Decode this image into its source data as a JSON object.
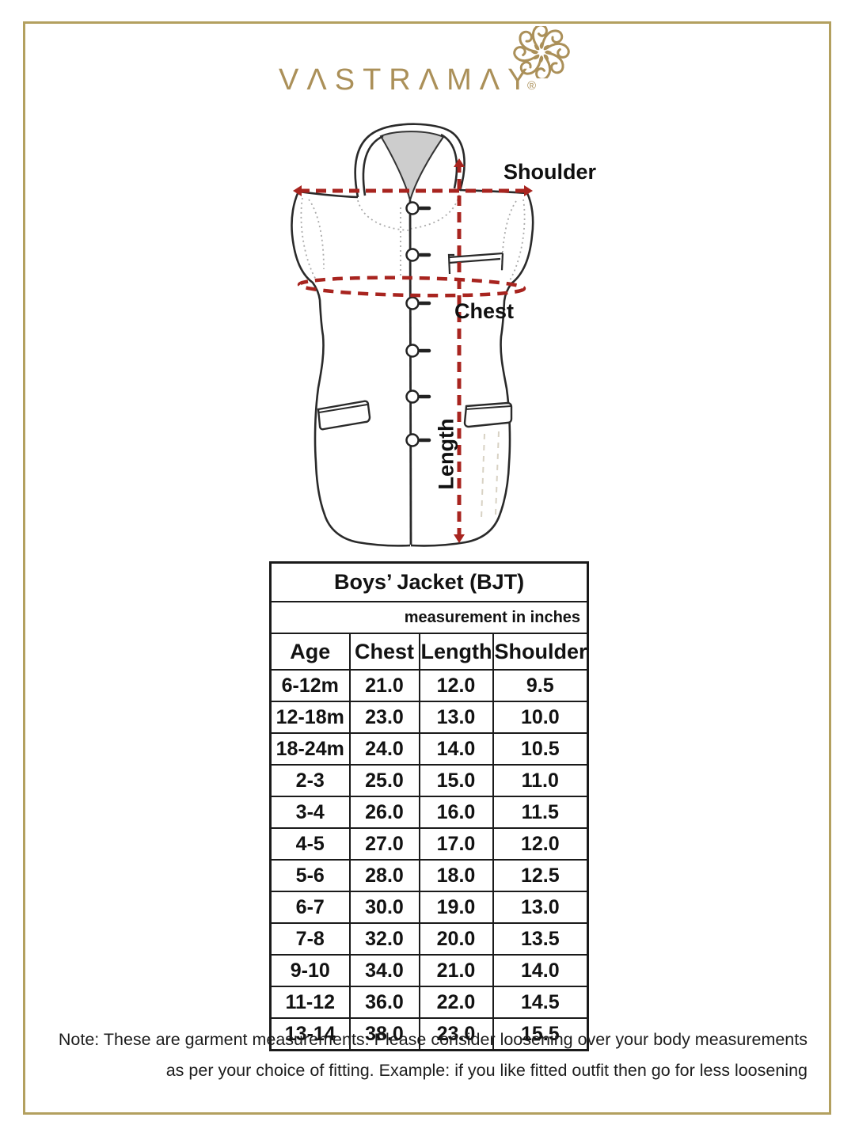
{
  "page": {
    "background": "#ffffff",
    "border_color": "#b3a05f"
  },
  "brand": {
    "name": "VASTRAMAY",
    "display": "VΛSTRΛMΛY",
    "registered_mark": "®",
    "color": "#ab9059"
  },
  "diagram": {
    "shoulder_label": "Shoulder",
    "chest_label": "Chest",
    "length_label": "Length",
    "annotation_color": "#a8241f"
  },
  "size_chart": {
    "title": "Boys’ Jacket (BJT)",
    "unit_note": "measurement in inches",
    "columns": [
      "Age",
      "Chest",
      "Length",
      "Shoulder"
    ],
    "rows": [
      {
        "age": "6-12m",
        "chest": "21.0",
        "length": "12.0",
        "shoulder": "9.5"
      },
      {
        "age": "12-18m",
        "chest": "23.0",
        "length": "13.0",
        "shoulder": "10.0"
      },
      {
        "age": "18-24m",
        "chest": "24.0",
        "length": "14.0",
        "shoulder": "10.5"
      },
      {
        "age": "2-3",
        "chest": "25.0",
        "length": "15.0",
        "shoulder": "11.0"
      },
      {
        "age": "3-4",
        "chest": "26.0",
        "length": "16.0",
        "shoulder": "11.5"
      },
      {
        "age": "4-5",
        "chest": "27.0",
        "length": "17.0",
        "shoulder": "12.0"
      },
      {
        "age": "5-6",
        "chest": "28.0",
        "length": "18.0",
        "shoulder": "12.5"
      },
      {
        "age": "6-7",
        "chest": "30.0",
        "length": "19.0",
        "shoulder": "13.0"
      },
      {
        "age": "7-8",
        "chest": "32.0",
        "length": "20.0",
        "shoulder": "13.5"
      },
      {
        "age": "9-10",
        "chest": "34.0",
        "length": "21.0",
        "shoulder": "14.0"
      },
      {
        "age": "11-12",
        "chest": "36.0",
        "length": "22.0",
        "shoulder": "14.5"
      },
      {
        "age": "13-14",
        "chest": "38.0",
        "length": "23.0",
        "shoulder": "15.5"
      }
    ]
  },
  "note": {
    "line1": "Note: These are garment measurements. Please consider loosening over your body measurements",
    "line2": "as per your choice of fitting. Example: if you like fitted outfit then go for less loosening"
  }
}
